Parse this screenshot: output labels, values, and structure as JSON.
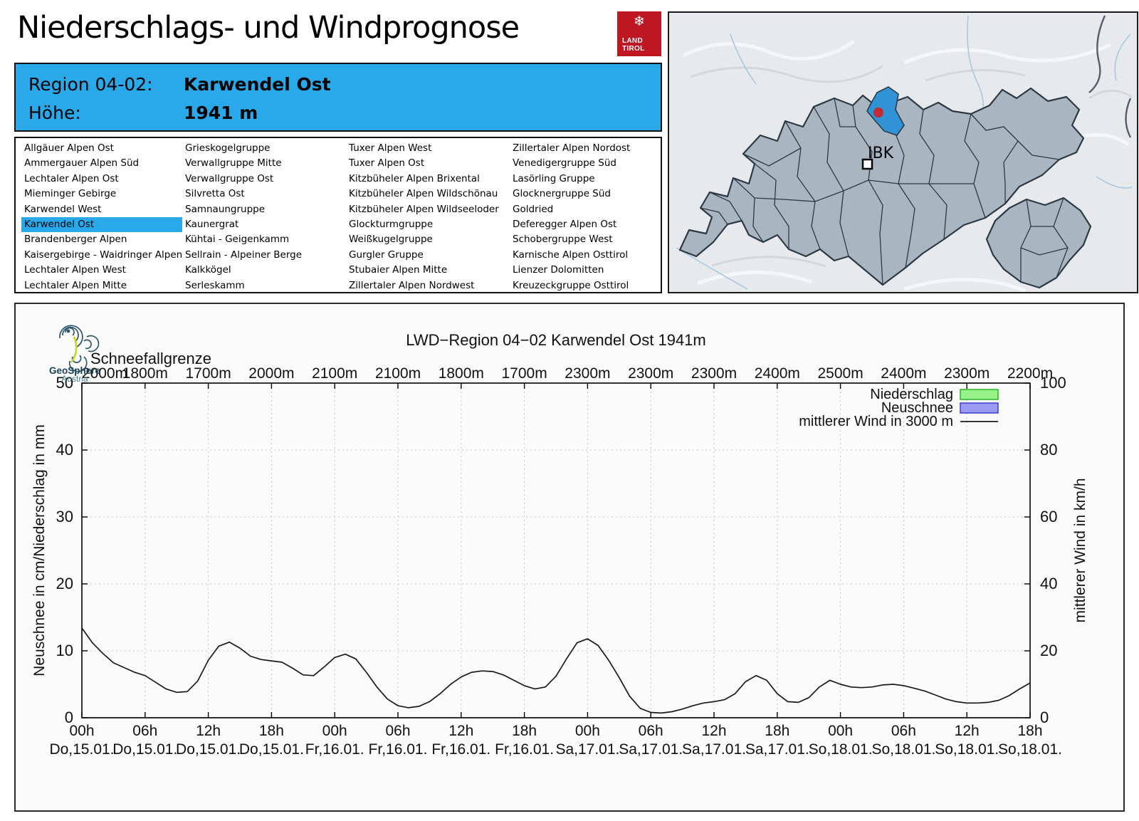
{
  "page": {
    "title": "Niederschlags- und Windprognose"
  },
  "land_tirol_logo": {
    "snowflake": "❄",
    "line1": "LAND",
    "line2": "TIROL",
    "color": "#bf1722"
  },
  "info_box": {
    "region_label": "Region 04-02:",
    "region_value": "Karwendel Ost",
    "altitude_label": "Höhe:",
    "altitude_value": "1941 m",
    "background": "#29a9ea"
  },
  "region_list": {
    "selected": "Karwendel Ost",
    "columns": [
      [
        "Allgäuer Alpen Ost",
        "Ammergauer Alpen Süd",
        "Lechtaler Alpen Ost",
        "Mieminger Gebirge",
        "Karwendel West",
        "Karwendel Ost",
        "Brandenberger Alpen",
        "Kaisergebirge - Waidringer Alpen",
        "Lechtaler Alpen West",
        "Lechtaler Alpen Mitte"
      ],
      [
        "Grieskogelgruppe",
        "Verwallgruppe Mitte",
        "Verwallgruppe Ost",
        "Silvretta Ost",
        "Samnaungruppe",
        "Kaunergrat",
        "Kühtai - Geigenkamm",
        "Sellrain - Alpeiner Berge",
        "Kalkkögel",
        "Serleskamm"
      ],
      [
        "Tuxer Alpen West",
        "Tuxer Alpen Ost",
        "Kitzbüheler Alpen Brixental",
        "Kitzbüheler Alpen Wildschönau",
        "Kitzbüheler Alpen Wildseeloder",
        "Glockturmgruppe",
        "Weißkugelgruppe",
        "Gurgler Gruppe",
        "Stubaier Alpen Mitte",
        "Zillertaler Alpen Nordwest"
      ],
      [
        "Zillertaler Alpen Nordost",
        "Venedigergruppe Süd",
        "Lasörling Gruppe",
        "Glocknergruppe Süd",
        "Goldried",
        "Deferegger Alpen Ost",
        "Schobergruppe West",
        "Karnische Alpen Osttirol",
        "Lienzer Dolomitten",
        "Kreuzeckgruppe Osttirol"
      ]
    ]
  },
  "map": {
    "city_label": "IBK",
    "highlight_region": "Karwendel Ost",
    "colors": {
      "terrain": "#e7e9ec",
      "regions": "#a9b6c2",
      "border": "#2c3a46",
      "highlight": "#3093d5",
      "marker": "#c52a30",
      "river": "#a8c8e0"
    }
  },
  "geosphere_logo": {
    "name": "GeoSphere",
    "sub": "Austria"
  },
  "chart_data": {
    "type": "line",
    "title": "LWD−Region 04−02 Karwendel Ost 1941m",
    "snowline_label": "Schneefallgrenze",
    "snowline_values": [
      "2000m",
      "1800m",
      "1700m",
      "2000m",
      "2100m",
      "2100m",
      "1800m",
      "1700m",
      "2300m",
      "2300m",
      "2300m",
      "2400m",
      "2500m",
      "2400m",
      "2300m",
      "2200m"
    ],
    "x_tick_hours": [
      "00h",
      "06h",
      "12h",
      "18h",
      "00h",
      "06h",
      "12h",
      "18h",
      "00h",
      "06h",
      "12h",
      "18h",
      "00h",
      "06h",
      "12h",
      "18h"
    ],
    "x_tick_dates": [
      "Do,15.01.",
      "Do,15.01.",
      "Do,15.01.",
      "Do,15.01.",
      "Fr,16.01.",
      "Fr,16.01.",
      "Fr,16.01.",
      "Fr,16.01.",
      "Sa,17.01.",
      "Sa,17.01.",
      "Sa,17.01.",
      "Sa,17.01.",
      "So,18.01.",
      "So,18.01.",
      "So,18.01.",
      "So,18.01."
    ],
    "x_range_hours": [
      0,
      90
    ],
    "ylabel_left": "Neuschnee in cm/Niederschlag in mm",
    "ylabel_right": "mittlerer Wind in km/h",
    "ylim_left": [
      0,
      50
    ],
    "ylim_right": [
      0,
      100
    ],
    "yticks_left": [
      0,
      10,
      20,
      30,
      40,
      50
    ],
    "yticks_right": [
      0,
      20,
      40,
      60,
      80,
      100
    ],
    "grid": "dotted",
    "legend": [
      {
        "label": "Niederschlag",
        "type": "box",
        "fill": "#98f388",
        "stroke": "#1faf1f"
      },
      {
        "label": "Neuschnee",
        "type": "box",
        "fill": "#9a9af3",
        "stroke": "#3333cc"
      },
      {
        "label": "mittlerer Wind in 3000 m",
        "type": "line",
        "stroke": "#1a1a1a"
      }
    ],
    "series": [
      {
        "name": "Niederschlag in mm",
        "values": []
      },
      {
        "name": "Neuschnee in cm",
        "values": []
      },
      {
        "name": "mittlerer Wind in 3000 m",
        "unit_note": "plotted on left scale; km/h = 2x",
        "points": [
          [
            0,
            13.4
          ],
          [
            1,
            11.2
          ],
          [
            2,
            9.6
          ],
          [
            3,
            8.2
          ],
          [
            4,
            7.5
          ],
          [
            5,
            6.8
          ],
          [
            6,
            6.3
          ],
          [
            7,
            5.3
          ],
          [
            8,
            4.3
          ],
          [
            9,
            3.8
          ],
          [
            10,
            3.9
          ],
          [
            11,
            5.5
          ],
          [
            12,
            8.6
          ],
          [
            13,
            10.7
          ],
          [
            14,
            11.3
          ],
          [
            15,
            10.4
          ],
          [
            16,
            9.2
          ],
          [
            17,
            8.7
          ],
          [
            18,
            8.5
          ],
          [
            19,
            8.3
          ],
          [
            20,
            7.4
          ],
          [
            21,
            6.4
          ],
          [
            22,
            6.3
          ],
          [
            23,
            7.6
          ],
          [
            24,
            9.0
          ],
          [
            25,
            9.5
          ],
          [
            26,
            8.8
          ],
          [
            27,
            6.8
          ],
          [
            28,
            4.6
          ],
          [
            29,
            2.8
          ],
          [
            30,
            1.8
          ],
          [
            31,
            1.5
          ],
          [
            32,
            1.7
          ],
          [
            33,
            2.4
          ],
          [
            34,
            3.6
          ],
          [
            35,
            5.0
          ],
          [
            36,
            6.1
          ],
          [
            37,
            6.8
          ],
          [
            38,
            7.0
          ],
          [
            39,
            6.9
          ],
          [
            40,
            6.4
          ],
          [
            41,
            5.6
          ],
          [
            42,
            4.8
          ],
          [
            43,
            4.3
          ],
          [
            44,
            4.6
          ],
          [
            45,
            6.2
          ],
          [
            46,
            8.8
          ],
          [
            47,
            11.2
          ],
          [
            48,
            11.8
          ],
          [
            49,
            10.8
          ],
          [
            50,
            8.6
          ],
          [
            51,
            6.0
          ],
          [
            52,
            3.2
          ],
          [
            53,
            1.4
          ],
          [
            54,
            0.8
          ],
          [
            55,
            0.7
          ],
          [
            56,
            0.9
          ],
          [
            57,
            1.3
          ],
          [
            58,
            1.8
          ],
          [
            59,
            2.2
          ],
          [
            60,
            2.4
          ],
          [
            61,
            2.7
          ],
          [
            62,
            3.6
          ],
          [
            63,
            5.4
          ],
          [
            64,
            6.3
          ],
          [
            65,
            5.6
          ],
          [
            66,
            3.6
          ],
          [
            67,
            2.4
          ],
          [
            68,
            2.3
          ],
          [
            69,
            3.0
          ],
          [
            70,
            4.6
          ],
          [
            71,
            5.6
          ],
          [
            72,
            5.0
          ],
          [
            73,
            4.6
          ],
          [
            74,
            4.5
          ],
          [
            75,
            4.6
          ],
          [
            76,
            4.9
          ],
          [
            77,
            5.0
          ],
          [
            78,
            4.8
          ],
          [
            79,
            4.4
          ],
          [
            80,
            4.0
          ],
          [
            81,
            3.4
          ],
          [
            82,
            2.8
          ],
          [
            83,
            2.4
          ],
          [
            84,
            2.2
          ],
          [
            85,
            2.2
          ],
          [
            86,
            2.3
          ],
          [
            87,
            2.6
          ],
          [
            88,
            3.3
          ],
          [
            89,
            4.3
          ],
          [
            90,
            5.2
          ]
        ]
      }
    ]
  }
}
